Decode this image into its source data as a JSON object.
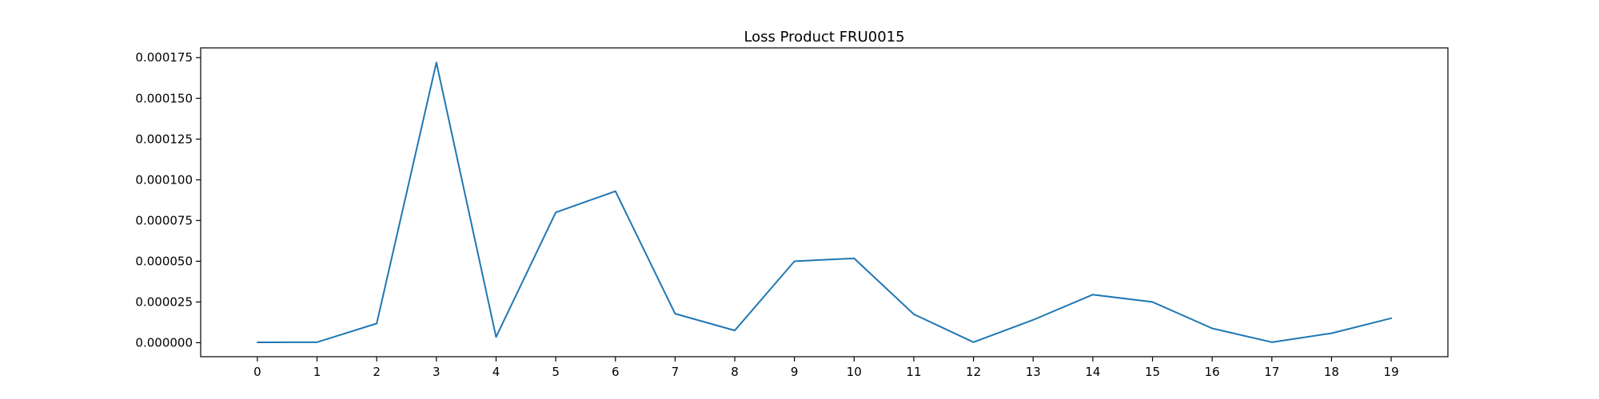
{
  "chart_data": {
    "type": "line",
    "title": "Loss Product FRU0015",
    "xlabel": "",
    "ylabel": "",
    "x": [
      0,
      1,
      2,
      3,
      4,
      5,
      6,
      7,
      8,
      9,
      10,
      11,
      12,
      13,
      14,
      15,
      16,
      17,
      18,
      19
    ],
    "x_tick_labels": [
      "0",
      "1",
      "2",
      "3",
      "4",
      "5",
      "6",
      "7",
      "8",
      "9",
      "10",
      "11",
      "12",
      "13",
      "14",
      "15",
      "16",
      "17",
      "18",
      "19"
    ],
    "y_tick_values": [
      0,
      2.5e-05,
      5e-05,
      7.5e-05,
      0.0001,
      0.000125,
      0.00015,
      0.000175
    ],
    "y_tick_labels": [
      "0.000000",
      "0.000025",
      "0.000050",
      "0.000075",
      "0.000100",
      "0.000125",
      "0.000150",
      "0.000175"
    ],
    "xlim": [
      -0.95,
      19.95
    ],
    "ylim": [
      -8.6e-06,
      0.000181
    ],
    "grid": false,
    "series": [
      {
        "color": "#1f77b4",
        "values": [
          2e-07,
          3e-07,
          1.18e-05,
          0.000172,
          3.5e-06,
          8e-05,
          9.3e-05,
          1.78e-05,
          7.5e-06,
          5e-05,
          5.18e-05,
          1.75e-05,
          3e-07,
          1.4e-05,
          2.95e-05,
          2.5e-05,
          8.8e-06,
          3e-07,
          5.8e-06,
          1.5e-05
        ]
      }
    ]
  }
}
